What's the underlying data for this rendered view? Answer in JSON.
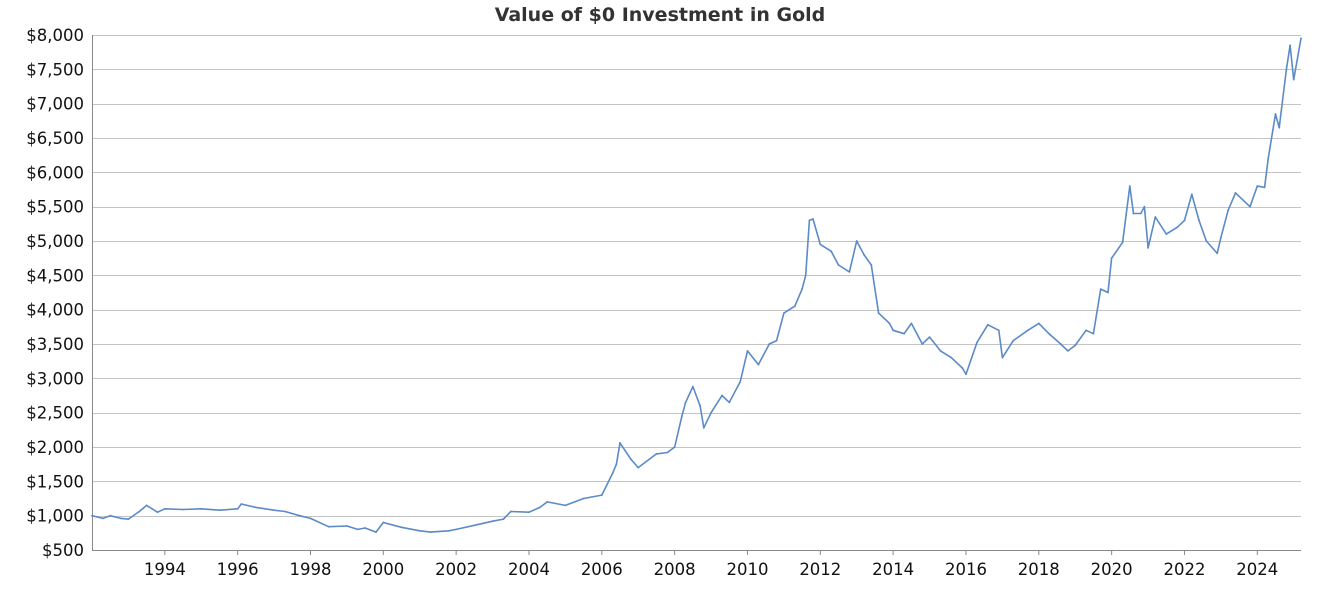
{
  "chart_data": {
    "type": "line",
    "title": "Value of $0 Investment in Gold",
    "xlabel": "",
    "ylabel": "",
    "x_start": 1992.0,
    "x_end": 2025.2,
    "ylim": [
      500,
      8000
    ],
    "y_ticks": [
      500,
      1000,
      1500,
      2000,
      2500,
      3000,
      3500,
      4000,
      4500,
      5000,
      5500,
      6000,
      6500,
      7000,
      7500,
      8000
    ],
    "y_tick_labels": [
      "$500",
      "$1,000",
      "$1,500",
      "$2,000",
      "$2,500",
      "$3,000",
      "$3,500",
      "$4,000",
      "$4,500",
      "$5,000",
      "$5,500",
      "$6,000",
      "$6,500",
      "$7,000",
      "$7,500",
      "$8,000"
    ],
    "x_ticks": [
      1994,
      1996,
      1998,
      2000,
      2002,
      2004,
      2006,
      2008,
      2010,
      2012,
      2014,
      2016,
      2018,
      2020,
      2022,
      2024
    ],
    "x_tick_labels": [
      "1994",
      "1996",
      "1998",
      "2000",
      "2002",
      "2004",
      "2006",
      "2008",
      "2010",
      "2012",
      "2014",
      "2016",
      "2018",
      "2020",
      "2022",
      "2024"
    ],
    "grid": "horizontal",
    "line_color": "#5b8ac7",
    "series": [
      {
        "x": [
          1992.0,
          1992.3,
          1992.5,
          1992.8,
          1993.0,
          1993.3,
          1993.5,
          1993.8,
          1994.0,
          1994.5,
          1995.0,
          1995.5,
          1996.0,
          1996.1,
          1996.5,
          1997.0,
          1997.3,
          1997.7,
          1998.0,
          1998.5,
          1999.0,
          1999.3,
          1999.5,
          1999.8,
          2000.0,
          2000.5,
          2001.0,
          2001.3,
          2001.8,
          2002.0,
          2002.5,
          2003.0,
          2003.3,
          2003.5,
          2004.0,
          2004.3,
          2004.5,
          2005.0,
          2005.5,
          2006.0,
          2006.3,
          2006.4,
          2006.5,
          2006.8,
          2007.0,
          2007.5,
          2007.8,
          2008.0,
          2008.2,
          2008.3,
          2008.5,
          2008.7,
          2008.8,
          2009.0,
          2009.3,
          2009.5,
          2009.8,
          2010.0,
          2010.3,
          2010.6,
          2010.8,
          2011.0,
          2011.3,
          2011.5,
          2011.6,
          2011.7,
          2011.8,
          2012.0,
          2012.3,
          2012.5,
          2012.8,
          2013.0,
          2013.2,
          2013.4,
          2013.6,
          2013.9,
          2014.0,
          2014.3,
          2014.5,
          2014.8,
          2015.0,
          2015.3,
          2015.6,
          2015.9,
          2016.0,
          2016.3,
          2016.6,
          2016.9,
          2017.0,
          2017.3,
          2017.7,
          2018.0,
          2018.3,
          2018.6,
          2018.8,
          2019.0,
          2019.3,
          2019.5,
          2019.7,
          2019.9,
          2020.0,
          2020.3,
          2020.5,
          2020.6,
          2020.8,
          2020.9,
          2021.0,
          2021.2,
          2021.5,
          2021.8,
          2022.0,
          2022.2,
          2022.4,
          2022.6,
          2022.9,
          2023.0,
          2023.2,
          2023.4,
          2023.8,
          2024.0,
          2024.2,
          2024.3,
          2024.5,
          2024.6,
          2024.8,
          2024.9,
          2025.0,
          2025.2
        ],
        "y": [
          1000,
          960,
          1000,
          960,
          950,
          1060,
          1150,
          1050,
          1100,
          1090,
          1100,
          1080,
          1100,
          1170,
          1120,
          1080,
          1060,
          1000,
          960,
          840,
          850,
          800,
          820,
          760,
          900,
          830,
          780,
          760,
          780,
          800,
          860,
          920,
          950,
          1060,
          1050,
          1120,
          1200,
          1150,
          1250,
          1300,
          1620,
          1750,
          2060,
          1820,
          1700,
          1900,
          1920,
          2000,
          2450,
          2650,
          2880,
          2600,
          2280,
          2500,
          2750,
          2650,
          2950,
          3400,
          3200,
          3500,
          3550,
          3950,
          4050,
          4300,
          4500,
          5300,
          5320,
          4950,
          4850,
          4650,
          4550,
          5000,
          4800,
          4650,
          3950,
          3800,
          3700,
          3650,
          3800,
          3500,
          3600,
          3400,
          3300,
          3150,
          3060,
          3520,
          3780,
          3700,
          3300,
          3550,
          3700,
          3800,
          3640,
          3500,
          3400,
          3480,
          3700,
          3650,
          4300,
          4250,
          4750,
          4980,
          5800,
          5400,
          5400,
          5500,
          4900,
          5350,
          5100,
          5200,
          5300,
          5680,
          5300,
          5000,
          4820,
          5050,
          5450,
          5700,
          5500,
          5800,
          5780,
          6200,
          6850,
          6650,
          7500,
          7850,
          7350,
          7950
        ]
      }
    ]
  }
}
